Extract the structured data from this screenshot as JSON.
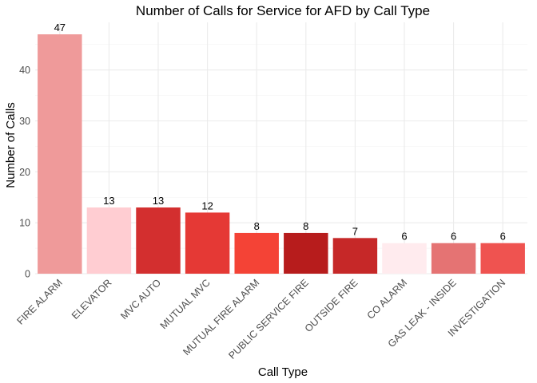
{
  "chart_data": {
    "type": "bar",
    "title": "Number of Calls for Service for AFD by Call Type",
    "xlabel": "Call Type",
    "ylabel": "Number of Calls",
    "categories": [
      "FIRE ALARM",
      "ELEVATOR",
      "MVC AUTO",
      "MUTUAL MVC",
      "MUTUAL FIRE ALARM",
      "PUBLIC SERVICE FIRE",
      "OUTSIDE FIRE",
      "CO ALARM",
      "GAS LEAK - INSIDE",
      "INVESTIGATION"
    ],
    "values": [
      47,
      13,
      13,
      12,
      8,
      8,
      7,
      6,
      6,
      6
    ],
    "colors": [
      "#ef9a9a",
      "#ffcdd2",
      "#d32f2f",
      "#e53935",
      "#f44336",
      "#b71c1c",
      "#c62828",
      "#ffebee",
      "#e57373",
      "#ef5350"
    ],
    "yticks": [
      0,
      10,
      20,
      30,
      40
    ],
    "ylim": [
      0,
      49.35
    ],
    "grid": true,
    "legend": "none"
  }
}
